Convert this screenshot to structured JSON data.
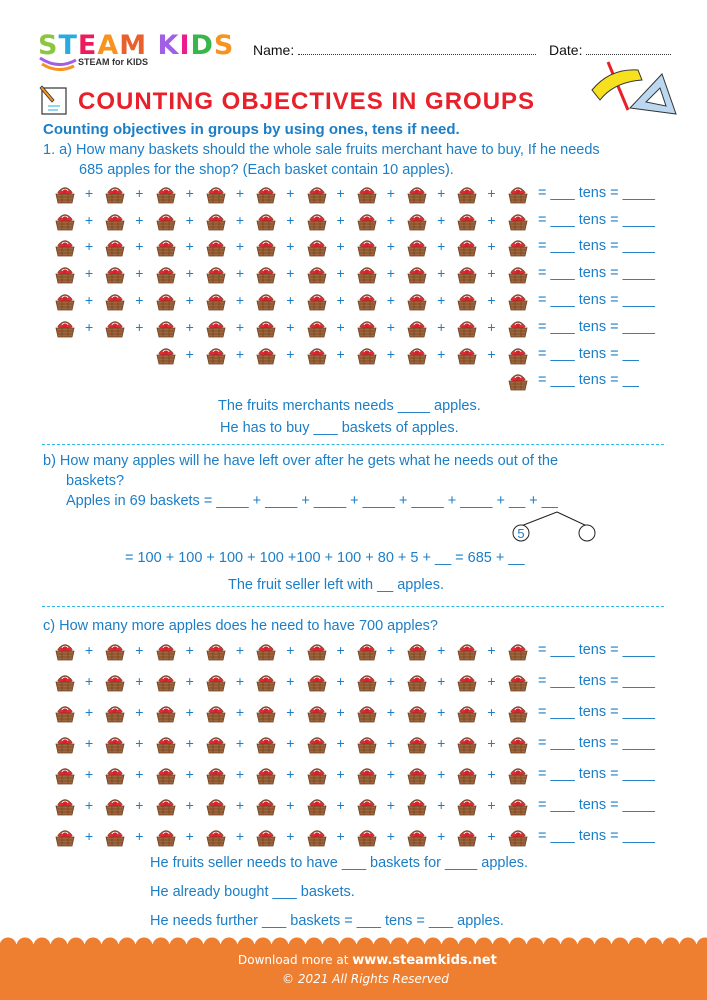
{
  "header": {
    "logo_text": "STEAM KIDS",
    "logo_sub": "STEAM for KIDS",
    "name_label": "Name:",
    "date_label": "Date:"
  },
  "title": "COUNTING OBJECTIVES IN GROUPS",
  "subtitle": "Counting objectives in groups by using ones, tens if need.",
  "colors": {
    "accent": "#1b7ec6",
    "title": "#e8202a",
    "footer": "#ee7f30",
    "divider": "#2fb8e6"
  },
  "part_a": {
    "question_line1": "1. a)  How many baskets should the whole sale fruits merchant have to buy, If he needs",
    "question_line2": "685 apples for the shop? (Each basket contain 10 apples).",
    "rows": [
      {
        "baskets": 10,
        "result": "= ___ tens = ____"
      },
      {
        "baskets": 10,
        "result": "= ___ tens = ____"
      },
      {
        "baskets": 10,
        "result": "= ___ tens = ____"
      },
      {
        "baskets": 10,
        "result": "= ___ tens = ____"
      },
      {
        "baskets": 10,
        "result": "= ___ tens = ____"
      },
      {
        "baskets": 10,
        "result": "= ___ tens = ____"
      },
      {
        "baskets": 8,
        "result": "= ___ tens = __"
      },
      {
        "baskets": 1,
        "result": "= ___ tens = __"
      }
    ],
    "answer1": "The fruits merchants needs ____ apples.",
    "answer2": "He has to buy ___ baskets of apples."
  },
  "part_b": {
    "question_line1": "b)  How many apples will he have left over after he gets what he needs out of the",
    "question_line2": "baskets?",
    "equation1": "Apples in 69 baskets = ____ + ____ + ____ + ____ + ____ + ____ + __ + __",
    "tree_left": "5",
    "equation2": "= 100 + 100 + 100 + 100 +100 + 100 + 80 + 5 + __   = 685 + __",
    "answer": "The fruit seller left with __ apples."
  },
  "part_c": {
    "question": "c)  How many more apples does he need to have 700 apples?",
    "rows": [
      {
        "baskets": 10,
        "result": "= ___ tens = ____"
      },
      {
        "baskets": 10,
        "result": "= ___ tens = ____"
      },
      {
        "baskets": 10,
        "result": "= ___ tens = ____"
      },
      {
        "baskets": 10,
        "result": "= ___ tens = ____"
      },
      {
        "baskets": 10,
        "result": "= ___ tens = ____"
      },
      {
        "baskets": 10,
        "result": "= ___ tens = ____"
      },
      {
        "baskets": 10,
        "result": "= ___ tens = ____"
      }
    ],
    "answer1": "He fruits seller needs to have ___ baskets for ____ apples.",
    "answer2": "He already bought ___ baskets.",
    "answer3": "He needs further ___ baskets = ___ tens = ___ apples."
  },
  "footer": {
    "download_text": "Download more at",
    "url": "www.steamkids.net",
    "copyright": "©  2021 All Rights Reserved"
  }
}
